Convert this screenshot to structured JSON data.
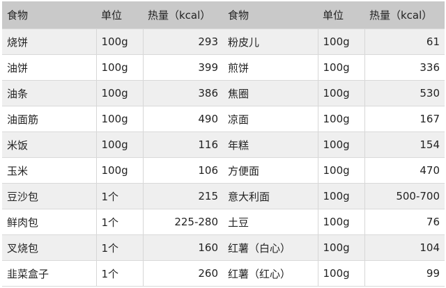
{
  "headers": [
    "食物",
    "单位",
    "热量（kcal）",
    "食物",
    "单位",
    "热量（kcal）"
  ],
  "rows": [
    [
      "烧饼",
      "100g",
      "293",
      "粉皮儿",
      "100g",
      "61"
    ],
    [
      "油饼",
      "100g",
      "399",
      "煎饼",
      "100g",
      "336"
    ],
    [
      "油条",
      "100g",
      "386",
      "焦圈",
      "100g",
      "530"
    ],
    [
      "油面筋",
      "100g",
      "490",
      "凉面",
      "100g",
      "167"
    ],
    [
      "米饭",
      "100g",
      "116",
      "年糕",
      "100g",
      "154"
    ],
    [
      "玉米",
      "100g",
      "106",
      "方便面",
      "100g",
      "470"
    ],
    [
      "豆沙包",
      "1个",
      "215",
      "意大利面",
      "100g",
      "500-700"
    ],
    [
      "鲜肉包",
      "1个",
      "225-280",
      "土豆",
      "100g",
      "76"
    ],
    [
      "叉烧包",
      "1个",
      "160",
      "红薯（白心）",
      "100g",
      "104"
    ],
    [
      "韭菜盒子",
      "1个",
      "260",
      "红薯（红心）",
      "100g",
      "99"
    ]
  ],
  "colors": {
    "header_bg": "#c9c9c9",
    "row_alt_bg": "#efefef",
    "row_bg": "#ffffff"
  }
}
